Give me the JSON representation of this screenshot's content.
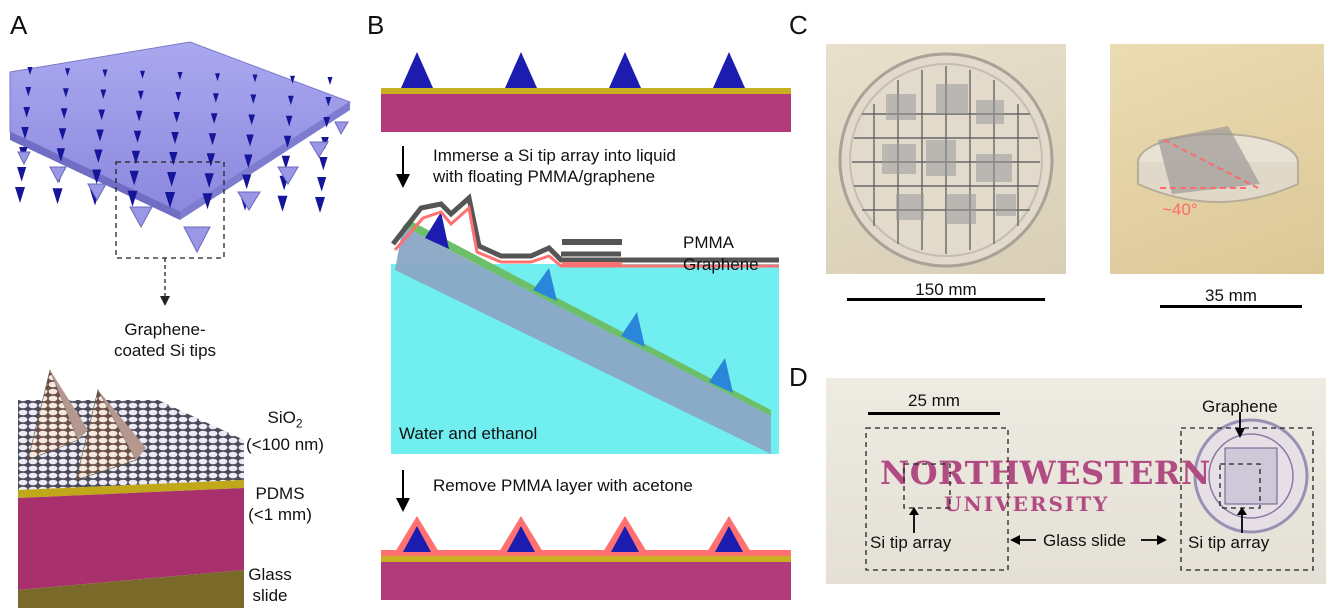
{
  "panels": {
    "a": {
      "letter": "A",
      "caption_line1": "Graphene-",
      "caption_line2": "coated Si tips",
      "layer_sio2_name": "SiO",
      "layer_sio2_sub": "2",
      "layer_sio2_thickness": "(<100 nm)",
      "layer_pdms_name": "PDMS",
      "layer_pdms_thickness": "(<1 mm)",
      "layer_glass_line1": "Glass",
      "layer_glass_line2": "slide"
    },
    "b": {
      "letter": "B",
      "step1_line1": "Immerse a Si tip array into liquid",
      "step1_line2": "with floating PMMA/graphene",
      "legend_pmma": "PMMA",
      "legend_graphene": "Graphene",
      "liquid_label": "Water and ethanol",
      "step2": "Remove PMMA layer with acetone"
    },
    "c": {
      "letter": "C",
      "scale_left": "150 mm",
      "scale_right": "35 mm",
      "angle": "~40°"
    },
    "d": {
      "letter": "D",
      "scale": "25 mm",
      "graphene": "Graphene",
      "tip_array_left": "Si tip array",
      "glass_slide": "Glass slide",
      "tip_array_right": "Si tip array",
      "logo_line1": "NORTHWESTERN",
      "logo_line2": "UNIVERSITY"
    }
  },
  "colors": {
    "membrane": "#9a9ae8",
    "tip": "#1a1aa8",
    "substrate": "#b03a7a",
    "sio2": "#c8b020",
    "liquid": "#70f0f0",
    "pmma": "#555555",
    "graphene": "#ff7070"
  }
}
